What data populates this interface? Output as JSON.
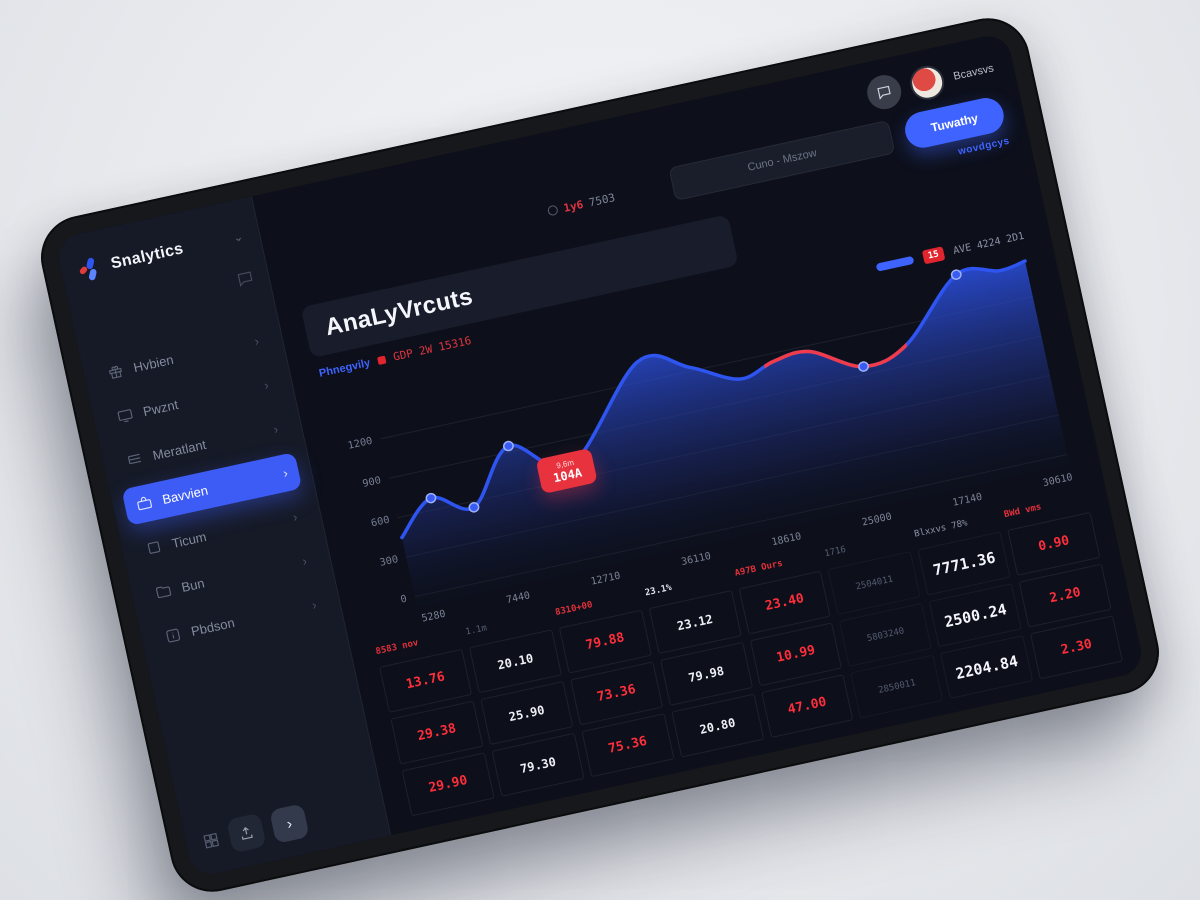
{
  "app": {
    "logo_text": "Snalytics",
    "header": {
      "user_name": "Bcavsvs",
      "status_red": "1y6",
      "status_gray": "7503",
      "search_placeholder": "Cuno - Mszow",
      "primary_button": "Tuwathy",
      "link_text": "wovdgcys"
    },
    "sidebar": {
      "items": [
        {
          "label": "Hvbien",
          "icon": "gift-icon",
          "active": false
        },
        {
          "label": "Pwznt",
          "icon": "monitor-icon",
          "active": false
        },
        {
          "label": "Meratlant",
          "icon": "list-icon",
          "active": false
        },
        {
          "label": "Bavvien",
          "icon": "briefcase-icon",
          "active": true
        },
        {
          "label": "Ticum",
          "icon": "square-icon",
          "active": false
        },
        {
          "label": "Bun",
          "icon": "folder-icon",
          "active": false
        },
        {
          "label": "Pbdson",
          "icon": "info-icon",
          "active": false
        }
      ]
    },
    "page": {
      "title": "AnaLyVrcuts",
      "subtitle_blue": "Phnegvily",
      "subtitle_red": "GDP 2W 15316"
    },
    "legend": {
      "badge": "15",
      "label": "AVE 4224 2D1"
    },
    "tooltip": {
      "line1": "9,6m",
      "line2": "104A"
    },
    "colors": {
      "accent_blue": "#3e63ff",
      "accent_red": "#e0252f",
      "table_red": "#ff2e3a"
    }
  },
  "chart_data": {
    "type": "area",
    "title": "AnaLyVrcuts",
    "xlabel": "",
    "ylabel": "",
    "ylim": [
      0,
      1500
    ],
    "grid": true,
    "legend_position": "top-right",
    "y_ticks": [
      "1200",
      "900",
      "600",
      "300",
      "0"
    ],
    "y_tick_values": [
      1200,
      900,
      600,
      300,
      0
    ],
    "x_ticks": [
      "5280",
      "7440",
      "12710",
      "36110",
      "18610",
      "25000",
      "17140",
      "30610"
    ],
    "line_color": "#2e55f0",
    "red_color": "#ef3b4a",
    "red_segment": [
      0.585,
      0.8
    ],
    "dot_indices": [
      1,
      2,
      3,
      4,
      10,
      12
    ],
    "points": [
      [
        0.0,
        450
      ],
      [
        0.055,
        690
      ],
      [
        0.115,
        555
      ],
      [
        0.185,
        945
      ],
      [
        0.27,
        705
      ],
      [
        0.4,
        1350
      ],
      [
        0.475,
        1230
      ],
      [
        0.545,
        1065
      ],
      [
        0.6,
        1140
      ],
      [
        0.655,
        1155
      ],
      [
        0.73,
        960
      ],
      [
        0.8,
        1050
      ],
      [
        0.895,
        1480
      ],
      [
        0.96,
        1440
      ],
      [
        1.0,
        1470
      ]
    ]
  },
  "table": {
    "columns": [
      {
        "header": "8583 nov",
        "style": "red",
        "cells": [
          {
            "v": "13.76",
            "s": "red"
          },
          {
            "v": "29.38",
            "s": "red"
          },
          {
            "v": "29.90",
            "s": "red"
          }
        ]
      },
      {
        "header": "1.1m",
        "style": "dim",
        "cells": [
          {
            "v": "20.10",
            "s": "white"
          },
          {
            "v": "25.90",
            "s": "white"
          },
          {
            "v": "79.30",
            "s": "white"
          }
        ]
      },
      {
        "header": "8310+00",
        "style": "red",
        "cells": [
          {
            "v": "79.88",
            "s": "red"
          },
          {
            "v": "73.36",
            "s": "red"
          },
          {
            "v": "75.36",
            "s": "red"
          }
        ]
      },
      {
        "header": "23.1%",
        "style": "white",
        "cells": [
          {
            "v": "23.12",
            "s": "white"
          },
          {
            "v": "79.98",
            "s": "white"
          },
          {
            "v": "20.80",
            "s": "white"
          }
        ]
      },
      {
        "header": "A97B Ours",
        "style": "red",
        "cells": [
          {
            "v": "23.40",
            "s": "red"
          },
          {
            "v": "10.99",
            "s": "red"
          },
          {
            "v": "47.00",
            "s": "red"
          }
        ]
      },
      {
        "header": "1716",
        "style": "dim",
        "cells": [
          {
            "v": "2504011",
            "s": "dim"
          },
          {
            "v": "5803240",
            "s": "dim"
          },
          {
            "v": "2850011",
            "s": "dim"
          }
        ]
      },
      {
        "header": "Blxxvs 78%",
        "style": "gray",
        "cells": [
          {
            "v": "7771.36",
            "s": "lg"
          },
          {
            "v": "2500.24",
            "s": "lg"
          },
          {
            "v": "2204.84",
            "s": "lg"
          }
        ]
      },
      {
        "header": "BWd vms",
        "style": "red",
        "cells": [
          {
            "v": "0.90",
            "s": "red"
          },
          {
            "v": "2.20",
            "s": "red"
          },
          {
            "v": "2.30",
            "s": "red"
          }
        ]
      }
    ]
  }
}
